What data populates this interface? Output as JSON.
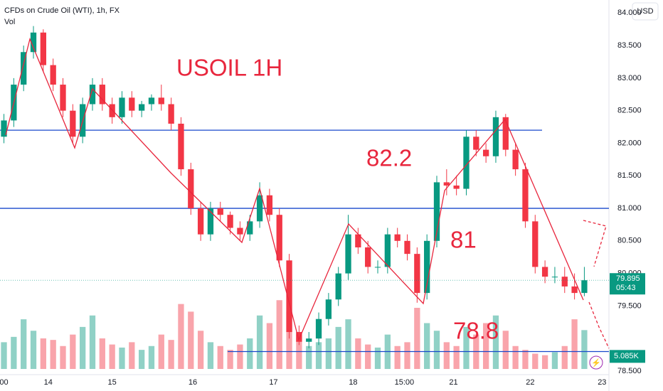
{
  "header": {
    "symbol": "CFDs on Crude Oil (WTI), 1h, FX",
    "indicator": "Vol",
    "currency": "USD"
  },
  "chart_data": {
    "type": "candlestick",
    "up_color": "#089981",
    "down_color": "#f23645",
    "open": [
      82.1,
      82.35,
      82.9,
      83.4,
      83.7,
      83.2,
      82.9,
      82.5,
      82.1,
      82.6,
      82.9,
      82.6,
      82.4,
      82.7,
      82.5,
      82.6,
      82.7,
      82.6,
      82.3,
      81.6,
      81.0,
      80.6,
      81.0,
      80.9,
      80.7,
      80.6,
      80.8,
      81.2,
      80.9,
      80.2,
      79.1,
      78.95,
      79.0,
      79.3,
      79.6,
      80.0,
      80.6,
      80.4,
      80.1,
      80.1,
      80.6,
      80.5,
      80.3,
      79.7,
      80.5,
      81.4,
      81.35,
      81.3,
      82.1,
      81.9,
      81.8,
      82.4,
      81.9,
      81.6,
      80.8,
      80.1,
      79.95,
      79.95,
      79.8,
      79.7
    ],
    "high": [
      82.45,
      83.0,
      83.5,
      83.8,
      83.75,
      83.3,
      83.0,
      82.6,
      82.7,
      83.0,
      83.0,
      82.7,
      82.8,
      82.8,
      82.65,
      82.75,
      82.9,
      82.7,
      82.4,
      81.7,
      81.1,
      81.1,
      81.1,
      80.95,
      80.8,
      80.9,
      81.4,
      81.3,
      81.0,
      80.3,
      79.2,
      79.1,
      79.4,
      79.7,
      80.1,
      80.9,
      80.7,
      80.5,
      80.2,
      80.7,
      80.7,
      80.6,
      80.4,
      80.6,
      81.5,
      81.6,
      81.5,
      82.2,
      82.2,
      82.0,
      82.5,
      82.45,
      82.0,
      81.7,
      80.9,
      80.2,
      80.1,
      80.1,
      80.0,
      80.1
    ],
    "low": [
      82.0,
      82.25,
      82.8,
      83.3,
      83.1,
      82.8,
      82.4,
      82.0,
      82.0,
      82.5,
      82.5,
      82.3,
      82.3,
      82.4,
      82.4,
      82.5,
      82.5,
      82.2,
      81.5,
      80.9,
      80.5,
      80.5,
      80.8,
      80.6,
      80.5,
      80.5,
      80.7,
      80.8,
      80.1,
      79.0,
      78.9,
      78.85,
      78.9,
      79.2,
      79.5,
      79.9,
      80.3,
      80.0,
      80.0,
      80.0,
      80.4,
      80.2,
      79.55,
      79.6,
      80.4,
      81.2,
      81.2,
      81.2,
      81.8,
      81.7,
      81.7,
      81.8,
      81.5,
      80.7,
      80.0,
      79.85,
      79.85,
      79.7,
      79.6,
      79.65
    ],
    "close": [
      82.35,
      82.9,
      83.4,
      83.7,
      83.2,
      82.9,
      82.5,
      82.1,
      82.6,
      82.9,
      82.6,
      82.4,
      82.7,
      82.5,
      82.6,
      82.7,
      82.6,
      82.3,
      81.6,
      81.0,
      80.6,
      81.0,
      80.9,
      80.7,
      80.6,
      80.8,
      81.2,
      80.9,
      80.2,
      79.1,
      78.95,
      79.0,
      79.3,
      79.6,
      80.0,
      80.6,
      80.4,
      80.1,
      80.1,
      80.6,
      80.5,
      80.3,
      79.7,
      80.5,
      81.4,
      81.35,
      81.3,
      82.1,
      81.9,
      81.8,
      82.4,
      81.9,
      81.6,
      80.8,
      80.1,
      79.95,
      79.95,
      79.8,
      79.7,
      79.895
    ],
    "volume": [
      3.5,
      4.2,
      6.5,
      5.0,
      4.0,
      3.8,
      3.0,
      4.5,
      5.5,
      7.0,
      4.0,
      3.2,
      2.8,
      3.5,
      2.5,
      3.0,
      4.5,
      3.8,
      8.5,
      7.5,
      5.0,
      3.5,
      3.0,
      2.5,
      3.2,
      4.0,
      7.0,
      6.0,
      9.0,
      7.5,
      4.5,
      3.0,
      3.5,
      4.0,
      5.5,
      6.5,
      4.0,
      3.2,
      2.8,
      4.5,
      3.0,
      3.5,
      8.0,
      6.0,
      5.0,
      3.5,
      3.0,
      5.5,
      4.5,
      6.0,
      7.0,
      5.0,
      3.0,
      2.5,
      2.0,
      1.8,
      2.2,
      3.0,
      6.5,
      5.085
    ],
    "xlim": [
      -0.4,
      61.5
    ],
    "xticks": [
      {
        "value": 0,
        "label": "00"
      },
      {
        "value": 4.5,
        "label": "14"
      },
      {
        "value": 11.0,
        "label": "15"
      },
      {
        "value": 19.2,
        "label": "16"
      },
      {
        "value": 27.4,
        "label": "17"
      },
      {
        "value": 35.5,
        "label": "18"
      },
      {
        "value": 40.7,
        "label": "15:00"
      },
      {
        "value": 45.7,
        "label": "21"
      },
      {
        "value": 53.5,
        "label": "22"
      },
      {
        "value": 60.8,
        "label": "23"
      }
    ],
    "ylim": [
      78.336,
      84.2
    ],
    "yticks": [
      {
        "value": 84,
        "label": "84.000"
      },
      {
        "value": 83.5,
        "label": "83.500"
      },
      {
        "value": 83,
        "label": "83.000"
      },
      {
        "value": 82.5,
        "label": "82.500"
      },
      {
        "value": 82,
        "label": "82.000"
      },
      {
        "value": 81.5,
        "label": "81.500"
      },
      {
        "value": 81,
        "label": "81.000"
      },
      {
        "value": 80.5,
        "label": "80.500"
      },
      {
        "value": 80,
        "label": "80.000"
      },
      {
        "value": 79.5,
        "label": "79.500"
      },
      {
        "value": 78.5,
        "label": "78.500"
      }
    ],
    "volume_ylim": [
      0,
      12
    ],
    "levels": [
      {
        "value": 82.2,
        "color": "#1848cc"
      },
      {
        "value": 81.0,
        "color": "#1848cc"
      },
      {
        "value": 78.8,
        "color": "#1848cc"
      }
    ],
    "last_price": 79.895,
    "countdown": "05:43",
    "last_volume": {
      "value": 5.085,
      "label": "5.085K"
    },
    "annotations": [
      "USOIL 1H",
      "82.2",
      "81",
      "78.8"
    ]
  }
}
